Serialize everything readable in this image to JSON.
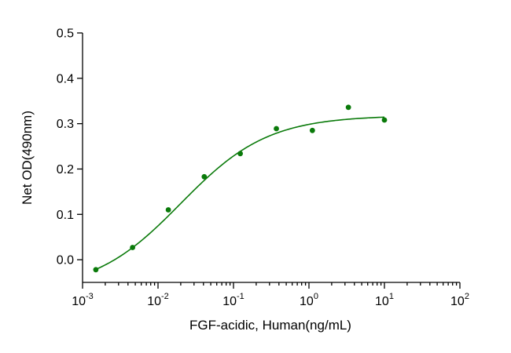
{
  "chart_data": {
    "type": "scatter",
    "title": "",
    "xlabel": "FGF-acidic, Human(ng/mL)",
    "ylabel": "Net OD(490nm)",
    "x_scale": "log",
    "xlim": [
      0.001,
      100
    ],
    "ylim": [
      -0.05,
      0.5
    ],
    "x_tick_base": "10",
    "x_tick_exponents": [
      "-3",
      "-2",
      "-1",
      "0",
      "1",
      "2"
    ],
    "x_tick_values": [
      0.001,
      0.01,
      0.1,
      1,
      10,
      100
    ],
    "y_ticks": [
      0.0,
      0.1,
      0.2,
      0.3,
      0.4,
      0.5
    ],
    "y_tick_labels": [
      "0.0",
      "0.1",
      "0.2",
      "0.3",
      "0.4",
      "0.5"
    ],
    "grid": false,
    "legend": "none",
    "series": [
      {
        "color": "#0a7a0a",
        "points": [
          {
            "x": 0.0015,
            "y": -0.022
          },
          {
            "x": 0.0046,
            "y": 0.027
          },
          {
            "x": 0.0137,
            "y": 0.11
          },
          {
            "x": 0.041,
            "y": 0.183
          },
          {
            "x": 0.123,
            "y": 0.234
          },
          {
            "x": 0.37,
            "y": 0.289
          },
          {
            "x": 1.11,
            "y": 0.285
          },
          {
            "x": 3.33,
            "y": 0.336
          },
          {
            "x": 10.0,
            "y": 0.308
          }
        ],
        "fit_curve": {
          "color": "#0a7a0a",
          "bottom": -0.07,
          "top": 0.318,
          "ec50": 0.02,
          "hill": 0.75
        }
      }
    ]
  }
}
